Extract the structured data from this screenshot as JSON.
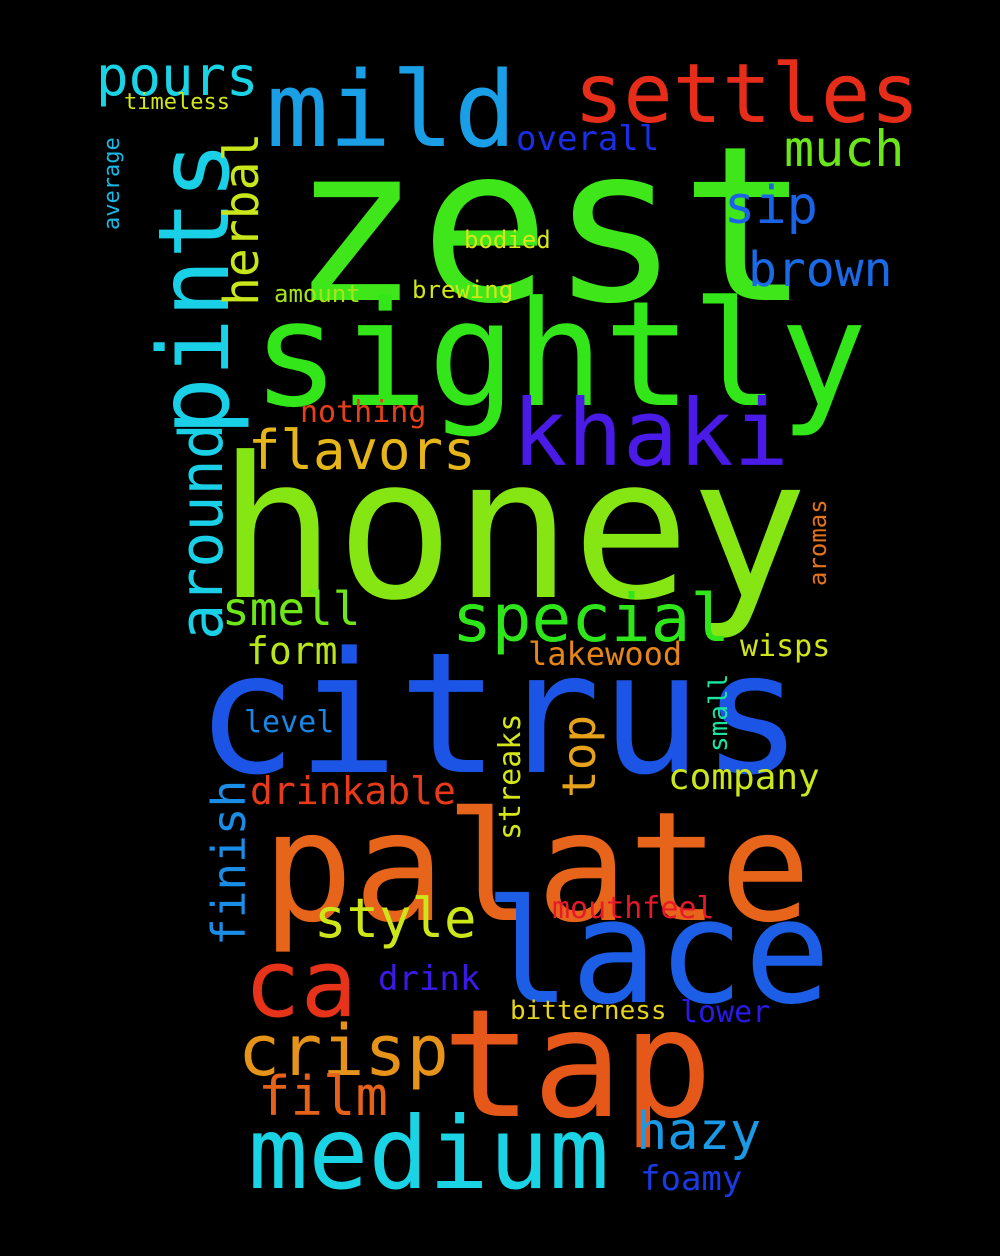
{
  "words": {
    "zest": {
      "text": "zest",
      "color": "#3fe61a"
    },
    "honey": {
      "text": "honey",
      "color": "#86e614"
    },
    "citrus": {
      "text": "citrus",
      "color": "#1c55e6"
    },
    "palate": {
      "text": "palate",
      "color": "#e6651a"
    },
    "sightly": {
      "text": "sightly",
      "color": "#33e61a"
    },
    "tap": {
      "text": "tap",
      "color": "#e6581a"
    },
    "lace": {
      "text": "lace",
      "color": "#1c5ee6"
    },
    "medium": {
      "text": "medium",
      "color": "#1ad4e6"
    },
    "mild": {
      "text": "mild",
      "color": "#1a9ee6"
    },
    "settles": {
      "text": "settles",
      "color": "#e62d1a"
    },
    "pints": {
      "text": "pints",
      "color": "#1ad0e6"
    },
    "khaki": {
      "text": "khaki",
      "color": "#4a1ae6"
    },
    "ca": {
      "text": "ca",
      "color": "#e6331a"
    },
    "crisp": {
      "text": "crisp",
      "color": "#e6931a"
    },
    "special": {
      "text": "special",
      "color": "#2ee61a"
    },
    "around": {
      "text": "around",
      "color": "#1ad0e6"
    },
    "flavors": {
      "text": "flavors",
      "color": "#e6b51a"
    },
    "pours": {
      "text": "pours",
      "color": "#1ad4e6"
    },
    "style": {
      "text": "style",
      "color": "#cde61a"
    },
    "film": {
      "text": "film",
      "color": "#e6621a"
    },
    "hazy": {
      "text": "hazy",
      "color": "#1a9ae6"
    },
    "herbal": {
      "text": "herbal",
      "color": "#c8e61a"
    },
    "much": {
      "text": "much",
      "color": "#6be61a"
    },
    "brown": {
      "text": "brown",
      "color": "#1a6ae6"
    },
    "sip": {
      "text": "sip",
      "color": "#1a62e6"
    },
    "smell": {
      "text": "smell",
      "color": "#6fe61a"
    },
    "finish": {
      "text": "finish",
      "color": "#1a8ee6"
    },
    "top": {
      "text": "top",
      "color": "#e6a21a"
    },
    "drinkable": {
      "text": "drinkable",
      "color": "#e63a1a"
    },
    "company": {
      "text": "company",
      "color": "#cbe61a"
    },
    "form": {
      "text": "form",
      "color": "#b8e61a"
    },
    "foamy": {
      "text": "foamy",
      "color": "#1a3ae6"
    },
    "drink": {
      "text": "drink",
      "color": "#3a1ae6"
    },
    "overall": {
      "text": "overall",
      "color": "#1a2ee6"
    },
    "streaks": {
      "text": "streaks",
      "color": "#d4e61a"
    },
    "lakewood": {
      "text": "lakewood",
      "color": "#e6861a"
    },
    "wisps": {
      "text": "wisps",
      "color": "#d0e61a"
    },
    "mouthfeel": {
      "text": "mouthfeel",
      "color": "#e61a2a"
    },
    "level": {
      "text": "level",
      "color": "#1a86e6"
    },
    "nothing": {
      "text": "nothing",
      "color": "#e6401a"
    },
    "bitterness": {
      "text": "bitterness",
      "color": "#e6d31a"
    },
    "lower": {
      "text": "lower",
      "color": "#2a1ae6"
    },
    "small": {
      "text": "small",
      "color": "#1ae6a0"
    },
    "aromas": {
      "text": "aromas",
      "color": "#e6731a"
    },
    "bodied": {
      "text": "bodied",
      "color": "#d8e61a"
    },
    "brewing": {
      "text": "brewing",
      "color": "#d3e61a"
    },
    "amount": {
      "text": "amount",
      "color": "#a4e61a"
    },
    "timeless": {
      "text": "timeless",
      "color": "#d3e61a"
    },
    "average": {
      "text": "average",
      "color": "#1ab8e6"
    }
  }
}
